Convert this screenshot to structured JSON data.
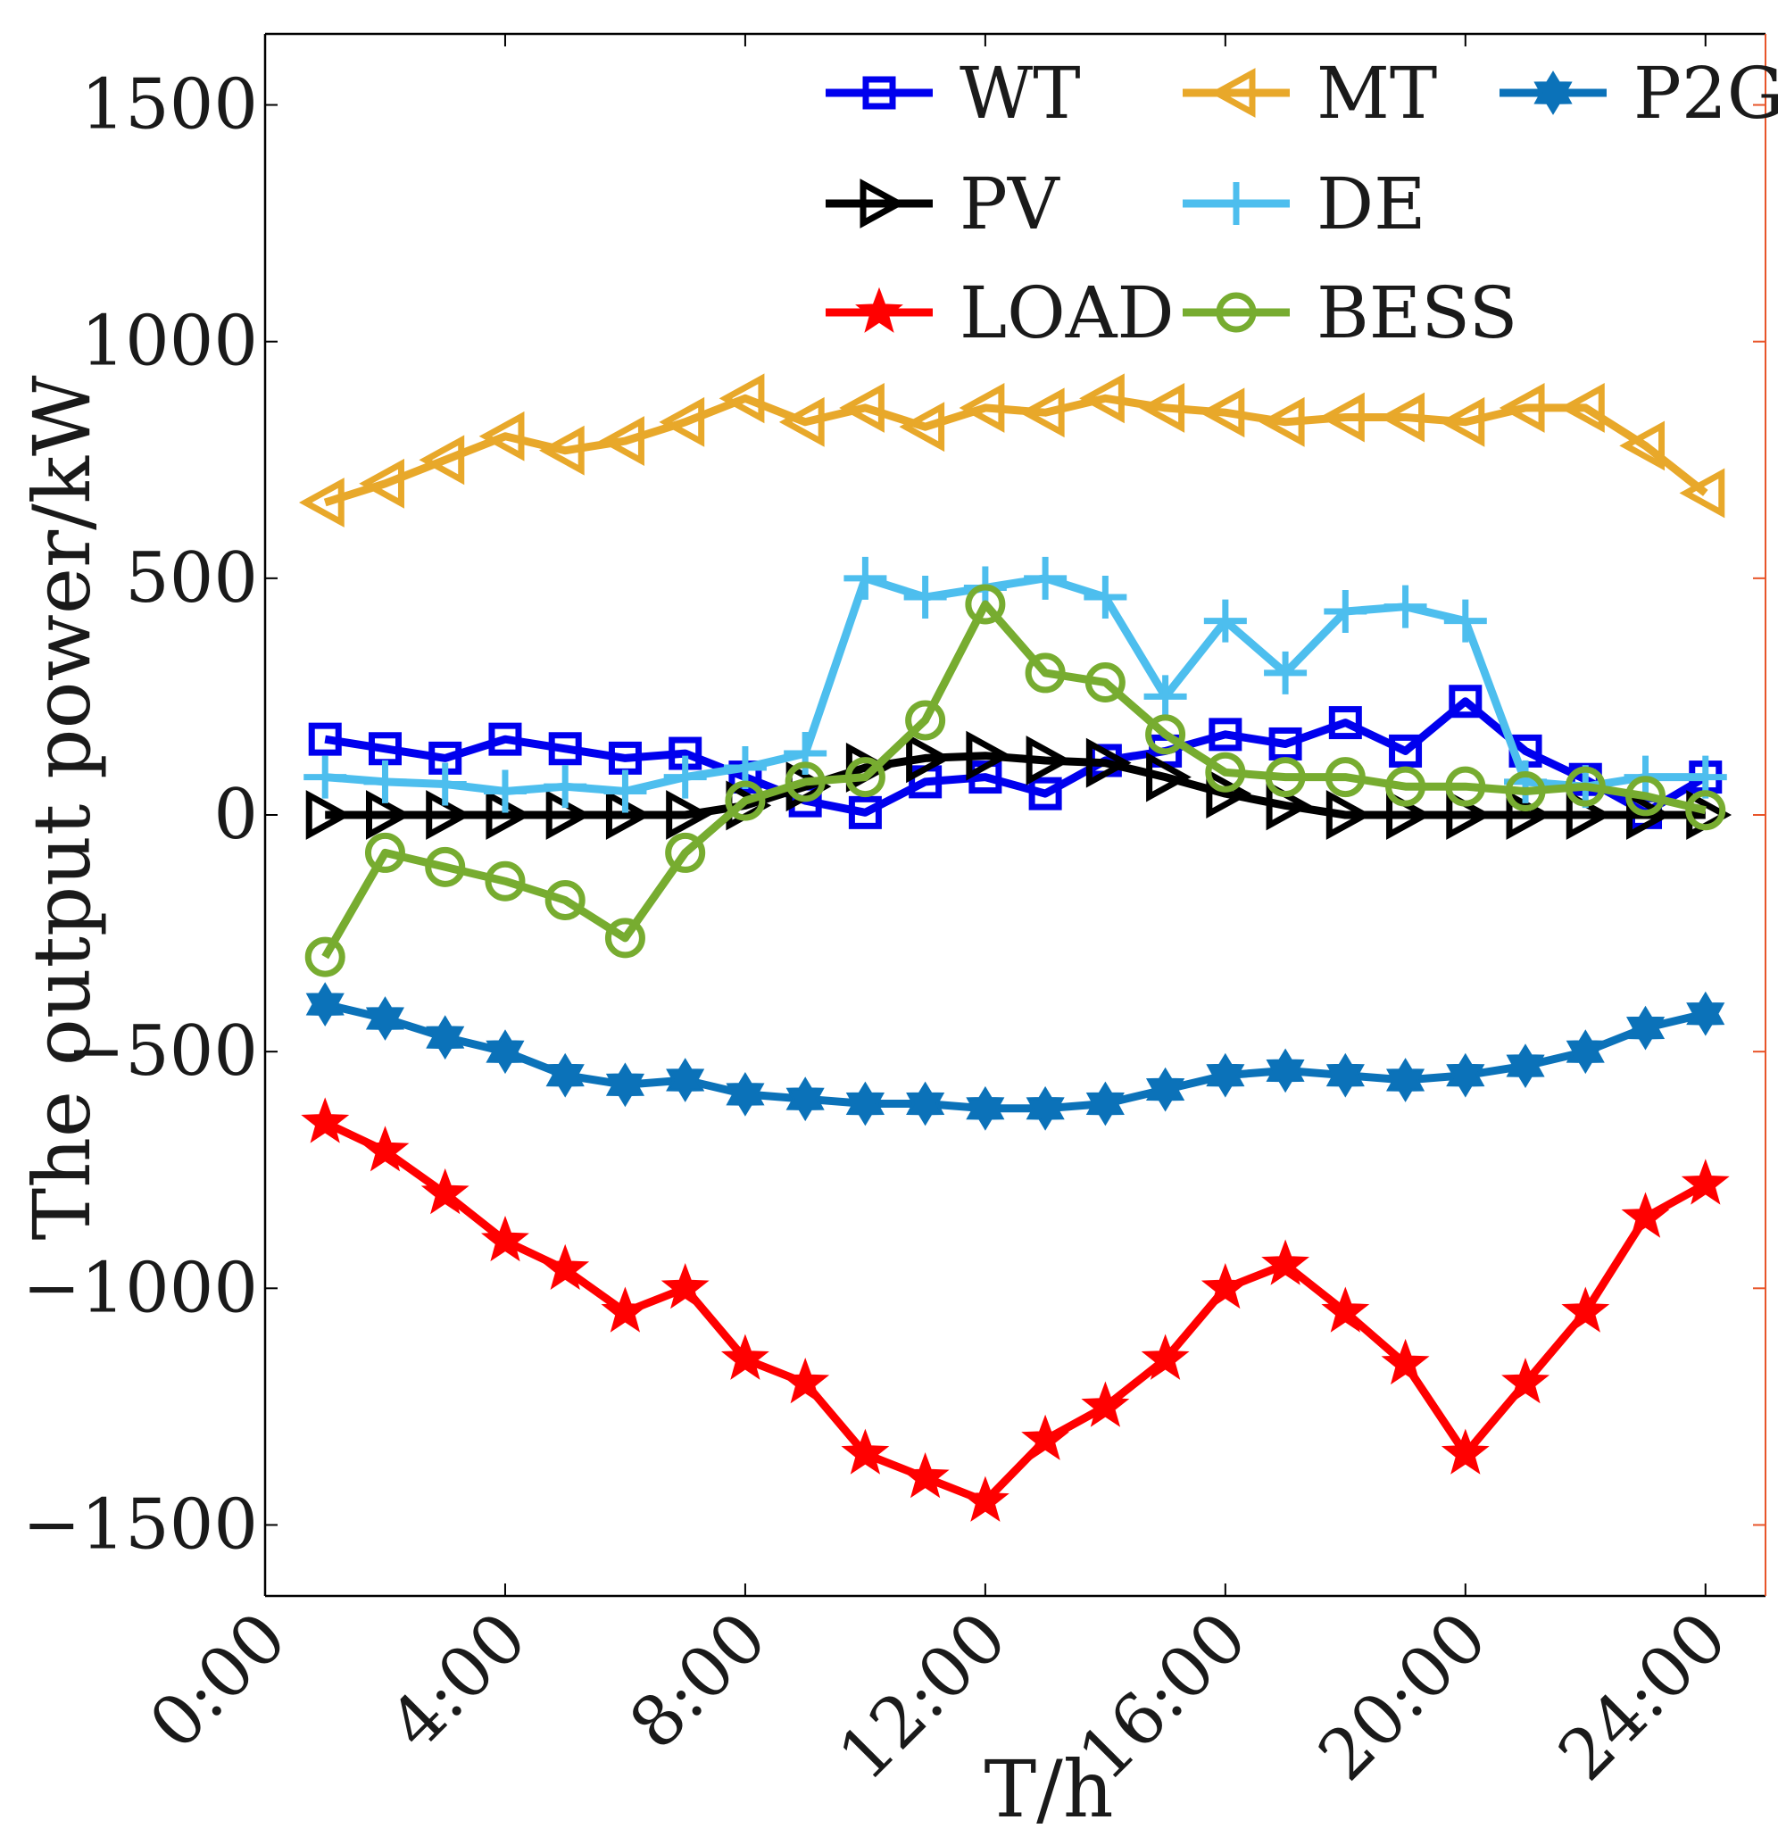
{
  "chart_data": {
    "type": "line",
    "xlabel": "T/h",
    "ylabel": "The output power/kW",
    "ylim": [
      -1650,
      1650
    ],
    "xlim": [
      0,
      25
    ],
    "y_ticks": [
      -1500,
      -1000,
      -500,
      0,
      500,
      1000,
      1500
    ],
    "y_tick_labels": [
      "−1500",
      "−1000",
      "−500",
      "0",
      "500",
      "1000",
      "1500"
    ],
    "x_ticks": [
      0,
      4,
      8,
      12,
      16,
      20,
      24
    ],
    "x_tick_labels": [
      "0:00",
      "4:00",
      "8:00",
      "12:00",
      "16:00",
      "20:00",
      "24:00"
    ],
    "grid": false,
    "legend_position": "top-right",
    "x": [
      1,
      2,
      3,
      4,
      5,
      6,
      7,
      8,
      9,
      10,
      11,
      12,
      13,
      14,
      15,
      16,
      17,
      18,
      19,
      20,
      21,
      22,
      23,
      24
    ],
    "series": [
      {
        "name": "WT",
        "color": "#0000ee",
        "marker": "square",
        "values": [
          160,
          140,
          120,
          160,
          140,
          120,
          130,
          80,
          30,
          5,
          70,
          80,
          45,
          115,
          135,
          170,
          150,
          195,
          135,
          240,
          135,
          75,
          5,
          80
        ]
      },
      {
        "name": "MT",
        "color": "#e8a82a",
        "marker": "triangle-left",
        "values": [
          660,
          700,
          750,
          800,
          770,
          790,
          830,
          880,
          830,
          860,
          820,
          860,
          850,
          880,
          860,
          850,
          830,
          840,
          840,
          830,
          860,
          860,
          780,
          680
        ]
      },
      {
        "name": "P2G",
        "color": "#0b72b9",
        "marker": "hexagram",
        "values": [
          -400,
          -430,
          -470,
          -500,
          -550,
          -570,
          -560,
          -590,
          -600,
          -610,
          -610,
          -620,
          -620,
          -610,
          -580,
          -550,
          -540,
          -550,
          -560,
          -550,
          -530,
          -500,
          -450,
          -420
        ]
      },
      {
        "name": "PV",
        "color": "#000000",
        "marker": "triangle-right",
        "values": [
          0,
          0,
          0,
          0,
          0,
          0,
          0,
          20,
          60,
          100,
          120,
          125,
          115,
          110,
          80,
          45,
          20,
          0,
          0,
          0,
          0,
          0,
          0,
          0
        ]
      },
      {
        "name": "DE",
        "color": "#4dbeee",
        "marker": "plus",
        "values": [
          80,
          70,
          65,
          50,
          60,
          50,
          80,
          100,
          130,
          500,
          460,
          480,
          500,
          460,
          250,
          410,
          300,
          430,
          440,
          410,
          70,
          60,
          80,
          80
        ]
      },
      {
        "name": "LOAD",
        "color": "#ff0000",
        "marker": "star",
        "values": [
          -650,
          -710,
          -800,
          -900,
          -960,
          -1050,
          -1000,
          -1150,
          -1200,
          -1350,
          -1400,
          -1450,
          -1320,
          -1250,
          -1150,
          -1000,
          -950,
          -1050,
          -1160,
          -1350,
          -1200,
          -1050,
          -850,
          -780
        ]
      },
      {
        "name": "BESS",
        "color": "#77ac30",
        "marker": "circle",
        "values": [
          -300,
          -80,
          -110,
          -140,
          -180,
          -260,
          -80,
          30,
          70,
          80,
          200,
          445,
          300,
          280,
          170,
          90,
          80,
          80,
          60,
          60,
          50,
          60,
          40,
          10
        ]
      }
    ]
  }
}
